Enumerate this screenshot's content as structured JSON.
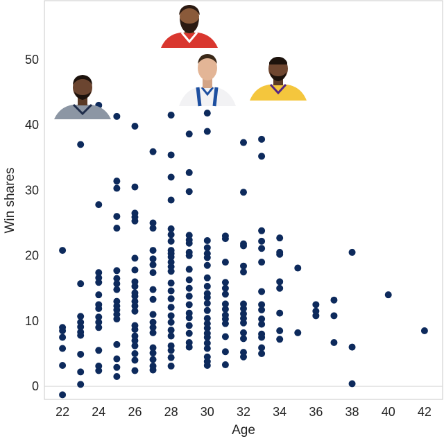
{
  "chart_data": {
    "type": "scatter",
    "xlabel": "Age",
    "ylabel": "Win shares",
    "xlim": [
      21,
      43
    ],
    "ylim": [
      -2,
      59
    ],
    "x_ticks": [
      22,
      24,
      26,
      28,
      30,
      32,
      34,
      36,
      38,
      40,
      42
    ],
    "y_ticks": [
      0,
      10,
      20,
      30,
      40,
      50
    ],
    "grid": false,
    "marker_color": "#0d2a5c",
    "points": [
      [
        22,
        -1.3
      ],
      [
        22,
        3.2
      ],
      [
        22,
        5.8
      ],
      [
        22,
        7.5
      ],
      [
        22,
        8.5
      ],
      [
        22,
        9.0
      ],
      [
        22,
        20.8
      ],
      [
        23,
        0.3
      ],
      [
        23,
        2.2
      ],
      [
        23,
        4.9
      ],
      [
        23,
        7.8
      ],
      [
        23,
        8.3
      ],
      [
        23,
        9.1
      ],
      [
        23,
        9.8
      ],
      [
        23,
        10.7
      ],
      [
        23,
        15.7
      ],
      [
        23,
        37.0
      ],
      [
        24,
        2.4
      ],
      [
        24,
        3.1
      ],
      [
        24,
        5.5
      ],
      [
        24,
        9.0
      ],
      [
        24,
        9.8
      ],
      [
        24,
        10.6
      ],
      [
        24,
        11.9
      ],
      [
        24,
        12.5
      ],
      [
        24,
        14.0
      ],
      [
        24,
        15.9
      ],
      [
        24,
        16.6
      ],
      [
        24,
        17.4
      ],
      [
        24,
        27.8
      ],
      [
        24,
        43.0
      ],
      [
        25,
        1.5
      ],
      [
        25,
        2.9
      ],
      [
        25,
        4.2
      ],
      [
        25,
        6.4
      ],
      [
        25,
        10.3
      ],
      [
        25,
        11.0
      ],
      [
        25,
        11.7
      ],
      [
        25,
        12.3
      ],
      [
        25,
        13.0
      ],
      [
        25,
        14.8
      ],
      [
        25,
        15.7
      ],
      [
        25,
        16.5
      ],
      [
        25,
        17.7
      ],
      [
        25,
        24.2
      ],
      [
        25,
        26.0
      ],
      [
        25,
        30.3
      ],
      [
        25,
        31.4
      ],
      [
        25,
        41.3
      ],
      [
        26,
        2.4
      ],
      [
        26,
        4.0
      ],
      [
        26,
        5.0
      ],
      [
        26,
        6.2
      ],
      [
        26,
        7.0
      ],
      [
        26,
        7.7
      ],
      [
        26,
        8.7
      ],
      [
        26,
        9.3
      ],
      [
        26,
        11.5
      ],
      [
        26,
        12.3
      ],
      [
        26,
        13.0
      ],
      [
        26,
        13.8
      ],
      [
        26,
        14.3
      ],
      [
        26,
        15.3
      ],
      [
        26,
        16.0
      ],
      [
        26,
        17.8
      ],
      [
        26,
        19.6
      ],
      [
        26,
        25.3
      ],
      [
        26,
        25.9
      ],
      [
        26,
        26.5
      ],
      [
        26,
        30.5
      ],
      [
        26,
        39.8
      ],
      [
        27,
        2.5
      ],
      [
        27,
        3.1
      ],
      [
        27,
        4.1
      ],
      [
        27,
        5.1
      ],
      [
        27,
        5.9
      ],
      [
        27,
        8.2
      ],
      [
        27,
        9.0
      ],
      [
        27,
        9.8
      ],
      [
        27,
        11.0
      ],
      [
        27,
        13.3
      ],
      [
        27,
        14.8
      ],
      [
        27,
        17.4
      ],
      [
        27,
        18.6
      ],
      [
        27,
        19.5
      ],
      [
        27,
        20.8
      ],
      [
        27,
        24.2
      ],
      [
        27,
        25.0
      ],
      [
        27,
        35.9
      ],
      [
        28,
        3.1
      ],
      [
        28,
        4.4
      ],
      [
        28,
        5.5
      ],
      [
        28,
        6.2
      ],
      [
        28,
        7.7
      ],
      [
        28,
        8.6
      ],
      [
        28,
        9.8
      ],
      [
        28,
        10.8
      ],
      [
        28,
        12.1
      ],
      [
        28,
        13.4
      ],
      [
        28,
        14.6
      ],
      [
        28,
        15.8
      ],
      [
        28,
        17.6
      ],
      [
        28,
        18.3
      ],
      [
        28,
        19.0
      ],
      [
        28,
        19.8
      ],
      [
        28,
        20.3
      ],
      [
        28,
        20.8
      ],
      [
        28,
        22.2
      ],
      [
        28,
        23.2
      ],
      [
        28,
        24.1
      ],
      [
        28,
        28.5
      ],
      [
        28,
        32.0
      ],
      [
        28,
        35.4
      ],
      [
        28,
        41.5
      ],
      [
        29,
        6.0
      ],
      [
        29,
        6.7
      ],
      [
        29,
        8.1
      ],
      [
        29,
        9.3
      ],
      [
        29,
        10.5
      ],
      [
        29,
        11.2
      ],
      [
        29,
        12.5
      ],
      [
        29,
        13.8
      ],
      [
        29,
        15.0
      ],
      [
        29,
        16.3
      ],
      [
        29,
        17.9
      ],
      [
        29,
        20.0
      ],
      [
        29,
        20.5
      ],
      [
        29,
        21.9
      ],
      [
        29,
        22.4
      ],
      [
        29,
        23.1
      ],
      [
        29,
        29.8
      ],
      [
        29,
        32.7
      ],
      [
        29,
        38.6
      ],
      [
        30,
        3.2
      ],
      [
        30,
        3.8
      ],
      [
        30,
        4.5
      ],
      [
        30,
        5.8
      ],
      [
        30,
        6.6
      ],
      [
        30,
        7.5
      ],
      [
        30,
        8.1
      ],
      [
        30,
        8.9
      ],
      [
        30,
        9.6
      ],
      [
        30,
        10.4
      ],
      [
        30,
        11.6
      ],
      [
        30,
        12.7
      ],
      [
        30,
        13.6
      ],
      [
        30,
        14.2
      ],
      [
        30,
        15.3
      ],
      [
        30,
        16.6
      ],
      [
        30,
        18.5
      ],
      [
        30,
        19.7
      ],
      [
        30,
        20.3
      ],
      [
        30,
        21.2
      ],
      [
        30,
        22.3
      ],
      [
        30,
        39.0
      ],
      [
        30,
        41.8
      ],
      [
        31,
        3.3
      ],
      [
        31,
        5.3
      ],
      [
        31,
        7.6
      ],
      [
        31,
        9.6
      ],
      [
        31,
        10.3
      ],
      [
        31,
        10.9
      ],
      [
        31,
        11.8
      ],
      [
        31,
        12.6
      ],
      [
        31,
        14.1
      ],
      [
        31,
        15.0
      ],
      [
        31,
        15.9
      ],
      [
        31,
        19.0
      ],
      [
        31,
        22.6
      ],
      [
        31,
        23.0
      ],
      [
        32,
        4.5
      ],
      [
        32,
        5.2
      ],
      [
        32,
        7.3
      ],
      [
        32,
        8.2
      ],
      [
        32,
        9.7
      ],
      [
        32,
        10.4
      ],
      [
        32,
        11.1
      ],
      [
        32,
        11.9
      ],
      [
        32,
        12.6
      ],
      [
        32,
        17.5
      ],
      [
        32,
        18.4
      ],
      [
        32,
        21.5
      ],
      [
        32,
        21.8
      ],
      [
        32,
        29.7
      ],
      [
        32,
        37.3
      ],
      [
        33,
        5.0
      ],
      [
        33,
        5.9
      ],
      [
        33,
        7.5
      ],
      [
        33,
        8.0
      ],
      [
        33,
        9.5
      ],
      [
        33,
        10.3
      ],
      [
        33,
        11.7
      ],
      [
        33,
        12.5
      ],
      [
        33,
        14.5
      ],
      [
        33,
        19.0
      ],
      [
        33,
        21.1
      ],
      [
        33,
        22.2
      ],
      [
        33,
        23.8
      ],
      [
        33,
        35.2
      ],
      [
        33,
        37.8
      ],
      [
        34,
        7.2
      ],
      [
        34,
        8.5
      ],
      [
        34,
        11.2
      ],
      [
        34,
        15.0
      ],
      [
        34,
        16.0
      ],
      [
        34,
        20.2
      ],
      [
        34,
        20.5
      ],
      [
        34,
        22.7
      ],
      [
        35,
        8.2
      ],
      [
        35,
        18.1
      ],
      [
        36,
        10.8
      ],
      [
        36,
        11.5
      ],
      [
        36,
        12.5
      ],
      [
        37,
        6.7
      ],
      [
        37,
        10.8
      ],
      [
        37,
        13.2
      ],
      [
        38,
        0.4
      ],
      [
        38,
        6.0
      ],
      [
        38,
        20.5
      ],
      [
        40,
        14.0
      ],
      [
        42,
        8.5
      ]
    ]
  }
}
